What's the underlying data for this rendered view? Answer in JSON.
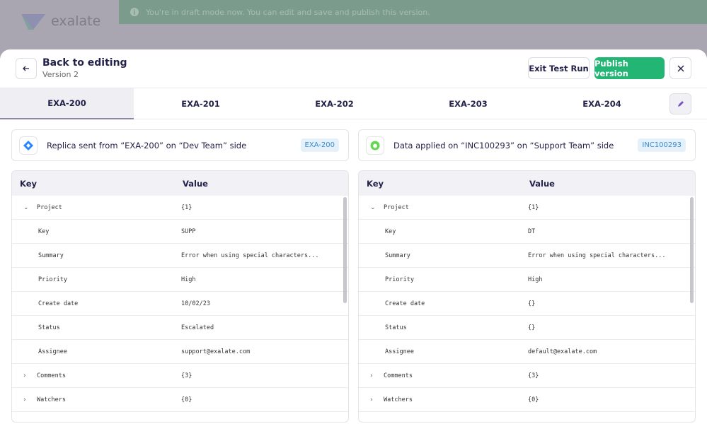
{
  "background": {
    "logo": "exalate",
    "banner": "You're in draft mode now. You can edit and save and publish this version."
  },
  "header": {
    "title": "Back to editing",
    "subtitle": "Version 2",
    "buttons": [
      "Exit Test Run",
      "Publish version"
    ]
  },
  "tabs": {
    "items": [
      "EXA-200",
      "EXA-201",
      "EXA-202",
      "EXA-203",
      "EXA-204"
    ],
    "active": 0
  },
  "panels": [
    {
      "message": "Replica sent from “EXA-200” on “Dev Team” side",
      "badge": "EXA-200",
      "icon": "diamond",
      "columns": [
        "Key",
        "Value"
      ],
      "rows": [
        {
          "key": "Project",
          "value": "{1}",
          "toggle": "open"
        },
        {
          "key": "Key",
          "value": "SUPP"
        },
        {
          "key": "Summary",
          "value": "Error when using special characters..."
        },
        {
          "key": "Priority",
          "value": "High"
        },
        {
          "key": "Create date",
          "value": "10/02/23"
        },
        {
          "key": "Status",
          "value": "Escalated"
        },
        {
          "key": "Assignee",
          "value": "support@exalate.com"
        },
        {
          "key": "Comments",
          "value": "{3}",
          "toggle": "closed"
        },
        {
          "key": "Watchers",
          "value": "{0}",
          "toggle": "closed"
        }
      ]
    },
    {
      "message": "Data applied on “INC100293” on “Support Team” side",
      "badge": "INC100293",
      "icon": "ring",
      "columns": [
        "Key",
        "Value"
      ],
      "rows": [
        {
          "key": "Project",
          "value": "{1}",
          "toggle": "open"
        },
        {
          "key": "Key",
          "value": "DT"
        },
        {
          "key": "Summary",
          "value": "Error when using special characters..."
        },
        {
          "key": "Priority",
          "value": "High"
        },
        {
          "key": "Create date",
          "value": "{}"
        },
        {
          "key": "Status",
          "value": "{}"
        },
        {
          "key": "Assignee",
          "value": "default@exalate.com"
        },
        {
          "key": "Comments",
          "value": "{3}",
          "toggle": "closed"
        },
        {
          "key": "Watchers",
          "value": "{0}",
          "toggle": "closed"
        }
      ]
    }
  ]
}
